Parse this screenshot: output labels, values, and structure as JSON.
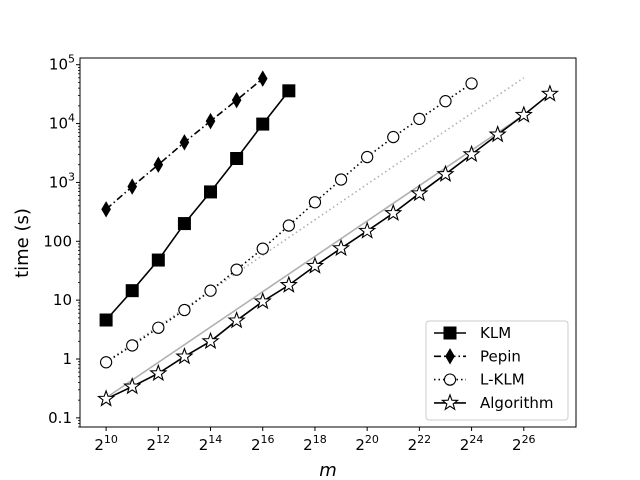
{
  "chart_data": {
    "type": "line",
    "xlabel": "m",
    "ylabel": "time (s)",
    "x_scale": "log2",
    "y_scale": "log10",
    "xlim": [
      512,
      268435456
    ],
    "ylim": [
      0.07,
      130000
    ],
    "x_ticks": [
      {
        "value": 1024,
        "base": "2",
        "exp": "10"
      },
      {
        "value": 4096,
        "base": "2",
        "exp": "12"
      },
      {
        "value": 16384,
        "base": "2",
        "exp": "14"
      },
      {
        "value": 65536,
        "base": "2",
        "exp": "16"
      },
      {
        "value": 262144,
        "base": "2",
        "exp": "18"
      },
      {
        "value": 1048576,
        "base": "2",
        "exp": "20"
      },
      {
        "value": 4194304,
        "base": "2",
        "exp": "22"
      },
      {
        "value": 16777216,
        "base": "2",
        "exp": "24"
      },
      {
        "value": 67108864,
        "base": "2",
        "exp": "26"
      }
    ],
    "y_ticks": [
      {
        "value": 0.1,
        "label": "0.1"
      },
      {
        "value": 1,
        "label": "1"
      },
      {
        "value": 10,
        "label": "10"
      },
      {
        "value": 100,
        "label": "100"
      },
      {
        "value": 1000,
        "label": "10",
        "exp": "3"
      },
      {
        "value": 10000,
        "label": "10",
        "exp": "4"
      },
      {
        "value": 100000,
        "label": "10",
        "exp": "5"
      }
    ],
    "legend_position": "lower-right",
    "series": [
      {
        "name": "KLM",
        "marker": "square",
        "line_style": "solid",
        "color": "#000000",
        "x": [
          1024,
          2048,
          4096,
          8192,
          16384,
          32768,
          65536,
          131072
        ],
        "y": [
          4.6,
          14.5,
          48,
          200,
          690,
          2550,
          9800,
          36000
        ]
      },
      {
        "name": "Pepin",
        "marker": "thin-diamond",
        "line_style": "dashdot",
        "color": "#000000",
        "x": [
          1024,
          2048,
          4096,
          8192,
          16384,
          32768,
          65536
        ],
        "y": [
          350,
          850,
          2000,
          4800,
          11000,
          25000,
          58000
        ]
      },
      {
        "name": "L-KLM",
        "marker": "circle-open",
        "line_style": "dotted",
        "color": "#000000",
        "x": [
          1024,
          2048,
          4096,
          8192,
          16384,
          32768,
          65536,
          131072,
          262144,
          524288,
          1048576,
          2097152,
          4194304,
          8388608,
          16777216
        ],
        "y": [
          0.88,
          1.7,
          3.4,
          6.8,
          14.5,
          33,
          75,
          185,
          460,
          1120,
          2700,
          5900,
          12000,
          24000,
          48000
        ]
      },
      {
        "name": "Algorithm",
        "marker": "star-open",
        "line_style": "solid",
        "color": "#000000",
        "x": [
          1024,
          2048,
          4096,
          8192,
          16384,
          32768,
          65536,
          131072,
          262144,
          524288,
          1048576,
          2097152,
          4194304,
          8388608,
          16777216,
          33554432,
          67108864,
          134217728
        ],
        "y": [
          0.21,
          0.34,
          0.57,
          1.1,
          2.0,
          4.5,
          9.5,
          18,
          38,
          76,
          150,
          300,
          650,
          1380,
          3000,
          6500,
          14000,
          32000
        ]
      }
    ],
    "reference_lines": [
      {
        "style": "solid",
        "color": "#b0b0b0",
        "x": [
          1024,
          67108864
        ],
        "y": [
          0.22,
          14000
        ]
      },
      {
        "style": "dotted",
        "color": "#b0b0b0",
        "x": [
          1024,
          67108864
        ],
        "y": [
          0.9,
          60000
        ]
      }
    ]
  }
}
